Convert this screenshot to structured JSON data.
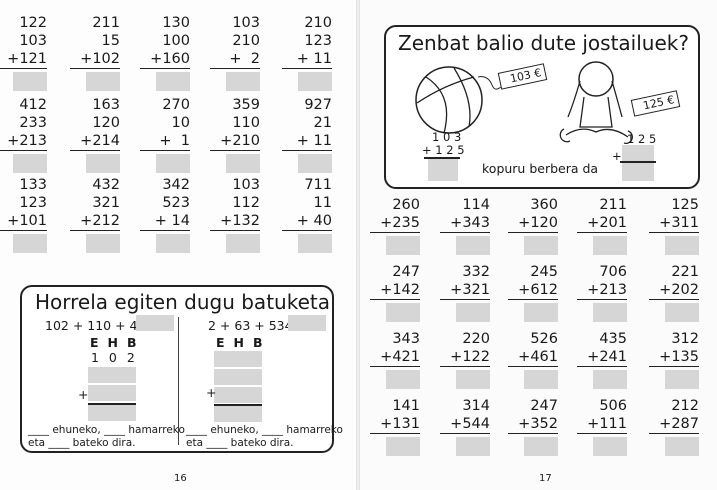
{
  "left_page": {
    "page_number": "16",
    "problems": [
      [
        "122",
        "103",
        "+121"
      ],
      [
        "211",
        "15",
        "+102"
      ],
      [
        "130",
        "100",
        "+160"
      ],
      [
        "103",
        "210",
        "+  2"
      ],
      [
        "210",
        "123",
        "+ 11"
      ],
      [
        "412",
        "233",
        "+213"
      ],
      [
        "163",
        "120",
        "+214"
      ],
      [
        "270",
        "10",
        "+  1"
      ],
      [
        "359",
        "110",
        "+210"
      ],
      [
        "927",
        "21",
        "+ 11"
      ],
      [
        "133",
        "123",
        "+101"
      ],
      [
        "432",
        "321",
        "+212"
      ],
      [
        "342",
        "523",
        "+ 14"
      ],
      [
        "103",
        "112",
        "+132"
      ],
      [
        "711",
        "11",
        "+ 40"
      ]
    ],
    "method_box": {
      "title": "Horrela egiten dugu batuketa",
      "left": {
        "equation": "102 + 110 + 4 =",
        "headers": "EHB",
        "first_row": "1 0 2",
        "plus": "+",
        "sentence_1": "____ ehuneko, ____ hamarreko",
        "sentence_2": "eta ____ bateko dira."
      },
      "right": {
        "equation": "2 + 63 + 534 =",
        "headers": "EHB",
        "plus": "+",
        "sentence_1": "____ ehuneko, ____ hamarreko",
        "sentence_2": "eta ____ bateko dira."
      }
    }
  },
  "right_page": {
    "page_number": "17",
    "toys_box": {
      "title": "Zenbat balio dute jostailuek?",
      "ball_price": "103 €",
      "doll_price": "125 €",
      "sum_top": "1 0 3",
      "sum_bottom": "+ 1 2 5",
      "alt_top": "1 2 5",
      "alt_plus": "+",
      "caption": "kopuru berbera da"
    },
    "problems": [
      [
        "260",
        "+235"
      ],
      [
        "114",
        "+343"
      ],
      [
        "360",
        "+120"
      ],
      [
        "211",
        "+201"
      ],
      [
        "125",
        "+311"
      ],
      [
        "247",
        "+142"
      ],
      [
        "332",
        "+321"
      ],
      [
        "245",
        "+612"
      ],
      [
        "706",
        "+213"
      ],
      [
        "221",
        "+202"
      ],
      [
        "343",
        "+421"
      ],
      [
        "220",
        "+122"
      ],
      [
        "526",
        "+461"
      ],
      [
        "435",
        "+241"
      ],
      [
        "312",
        "+135"
      ],
      [
        "141",
        "+131"
      ],
      [
        "314",
        "+544"
      ],
      [
        "247",
        "+352"
      ],
      [
        "506",
        "+111"
      ],
      [
        "212",
        "+287"
      ]
    ]
  },
  "colors": {
    "answer_box": "#d6d6d6",
    "ink": "#1a1a1a"
  }
}
